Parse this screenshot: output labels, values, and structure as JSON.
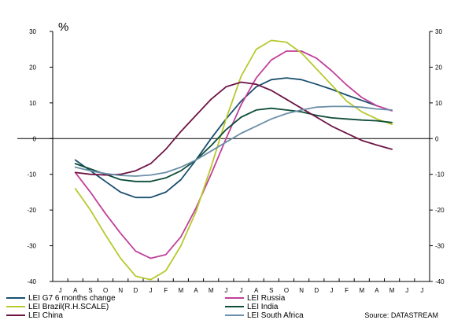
{
  "chart_data": {
    "type": "line",
    "unit_label": "%",
    "source": "Source: DATASTREAM",
    "ylim": [
      -40,
      30
    ],
    "yticks": [
      30,
      20,
      10,
      0,
      -10,
      -20,
      -30,
      -40
    ],
    "categories": [
      "J",
      "A",
      "S",
      "O",
      "N",
      "D",
      "J",
      "F",
      "M",
      "A",
      "M",
      "J",
      "J",
      "A",
      "S",
      "O",
      "N",
      "D",
      "J",
      "F",
      "M",
      "A",
      "M",
      "J",
      "J"
    ],
    "grid": false,
    "zero_line": true,
    "legend_position": "bottom",
    "series": [
      {
        "name": "LEI G7 6 months change",
        "color": "#1a4f6e",
        "values": [
          null,
          -6,
          -9,
          -12,
          -15,
          -16.5,
          -16.5,
          -15,
          -11.5,
          -6,
          0,
          5.5,
          10.5,
          14.5,
          16.5,
          17,
          16.5,
          15.2,
          13.8,
          12.2,
          10.7,
          9.2,
          null,
          null,
          null
        ]
      },
      {
        "name": "LEI Russia",
        "color": "#c0409a",
        "values": [
          null,
          -9.5,
          -15,
          -21,
          -26.5,
          -31.5,
          -33.5,
          -32.5,
          -27.5,
          -19.5,
          -10,
          0,
          9.5,
          17,
          22,
          24.5,
          24.5,
          22.5,
          19,
          15,
          11.5,
          9.2,
          7.8,
          null,
          null
        ]
      },
      {
        "name": "LEI Brazil(R.H.SCALE)",
        "color": "#b8c92e",
        "values": [
          null,
          -14,
          -20,
          -27,
          -33.5,
          -38.5,
          -39.5,
          -37,
          -30,
          -20.5,
          -8,
          5.5,
          17.5,
          25,
          27.5,
          27,
          24,
          19.5,
          15,
          10.5,
          7.5,
          5.5,
          4,
          null,
          null
        ]
      },
      {
        "name": "LEI India",
        "color": "#0f4d3a",
        "values": [
          null,
          -7,
          -8.5,
          -10,
          -11.5,
          -12,
          -12,
          -11,
          -9,
          -6,
          -2,
          2.5,
          6,
          8,
          8.5,
          8,
          7.5,
          6.5,
          5.8,
          5.5,
          5.2,
          5,
          4.5,
          null,
          null
        ]
      },
      {
        "name": "LEI China",
        "color": "#6e1445",
        "values": [
          null,
          -9.5,
          -10,
          -10.2,
          -10,
          -9,
          -7,
          -3,
          2,
          6.5,
          11,
          14.5,
          15.8,
          15.2,
          13.5,
          11,
          8.5,
          6,
          3.5,
          1.5,
          -0.5,
          -1.8,
          -3,
          null,
          null
        ]
      },
      {
        "name": "LEI South Africa",
        "color": "#6b8fa8",
        "values": [
          null,
          -8,
          -9,
          -9.8,
          -10.3,
          -10.5,
          -10.2,
          -9.5,
          -8,
          -6,
          -3.5,
          -1,
          1.5,
          3.5,
          5.5,
          7,
          8,
          8.8,
          9,
          9,
          8.8,
          8.3,
          8,
          null,
          null
        ]
      }
    ]
  }
}
